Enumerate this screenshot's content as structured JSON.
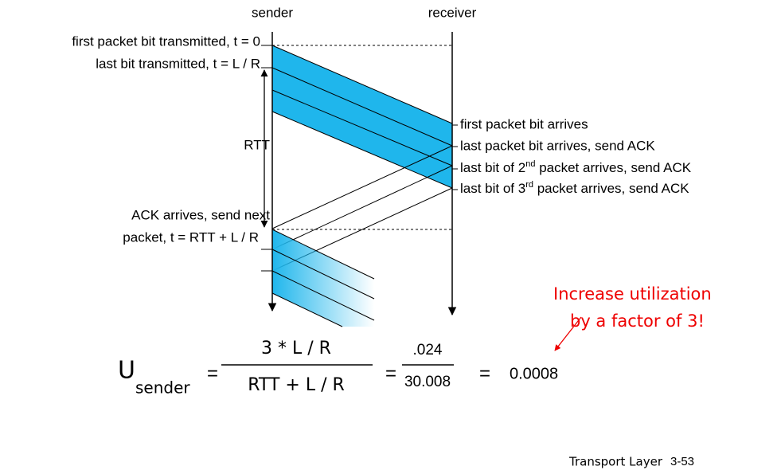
{
  "header": {
    "sender": "sender",
    "receiver": "receiver"
  },
  "left_labels": [
    "first packet bit transmitted, t = 0",
    "last bit transmitted, t = L / R",
    "RTT",
    "ACK arrives, send next",
    "packet, t = RTT + L / R"
  ],
  "right_labels": [
    {
      "parts": [
        "first packet bit arrives"
      ]
    },
    {
      "parts": [
        "last packet bit arrives, send ACK"
      ]
    },
    {
      "parts": [
        "last bit of 2",
        "nd",
        " packet arrives, send ACK"
      ]
    },
    {
      "parts": [
        "last bit of 3",
        "rd",
        " packet arrives, send ACK"
      ]
    }
  ],
  "annotation": [
    "Increase utilization",
    "by a factor of 3!"
  ],
  "formula": {
    "symbol": "U",
    "subscript": "sender",
    "eq1": "=",
    "numerator": "3 * L / R",
    "denominator": "RTT + L / R",
    "eq2": "=",
    "num2": ".024",
    "den2": "30.008",
    "eq3": "=",
    "result": "0.0008"
  },
  "footer": {
    "title": "Transport Layer",
    "page": "3-53"
  }
}
